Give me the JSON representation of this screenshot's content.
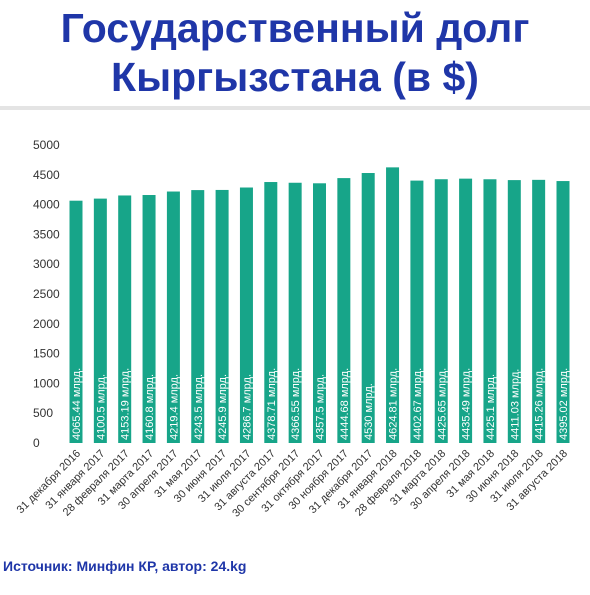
{
  "title_line1": "Государственный долг",
  "title_line2": "Кыргызстана (в $)",
  "source": "Источник: Минфин КР, автор: 24.kg",
  "colors": {
    "bar": "#17a589",
    "title": "#1f36a8",
    "tick": "#333333",
    "bar_label": "#ffffff"
  },
  "chart_data": {
    "type": "bar",
    "title": "Государственный долг Кыргызстана (в $)",
    "xlabel": "",
    "ylabel": "",
    "ylim": [
      0,
      5000
    ],
    "yticks": [
      0,
      500,
      1000,
      1500,
      2000,
      2500,
      3000,
      3500,
      4000,
      4500,
      5000
    ],
    "grid": false,
    "categories": [
      "31 декабря 2016",
      "31 января 2017",
      "28 февраля 2017",
      "31 марта 2017",
      "30 апреля 2017",
      "31 мая 2017",
      "30 июня 2017",
      "31 июля 2017",
      "31 августа 2017",
      "30 сентября 2017",
      "31 октября 2017",
      "30 ноября 2017",
      "31 декабря 2017",
      "31 января 2018",
      "28 февраля 2018",
      "31 марта 2018",
      "30 апреля 2018",
      "31 мая 2018",
      "30 июня 2018",
      "31 июля 2018",
      "31 августа 2018"
    ],
    "values": [
      4065.44,
      4100.5,
      4153.19,
      4160.8,
      4219.4,
      4243.5,
      4245.9,
      4286.7,
      4378.71,
      4366.55,
      4357.5,
      4444.68,
      4530,
      4624.81,
      4402.67,
      4425.65,
      4435.49,
      4425.1,
      4411.03,
      4415.26,
      4395.02
    ],
    "labels": [
      "4065.44 млрд.",
      "4100.5 млрд.",
      "4153.19 млрд.",
      "4160.8 млрд.",
      "4219.4 млрд.",
      "4243.5 млрд.",
      "4245.9 млрд.",
      "4286.7 млрд.",
      "4378.71 млрд.",
      "4366.55 млрд.",
      "4357.5 млрд.",
      "4444.68 млрд.",
      "4530 млрд.",
      "4624.81 млрд.",
      "4402.67 млрд.",
      "4425.65 млрд.",
      "4435.49 млрд.",
      "4425.1 млрд.",
      "4411.03 млрд.",
      "4415.26 млрд.",
      "4395.02 млрд."
    ]
  }
}
